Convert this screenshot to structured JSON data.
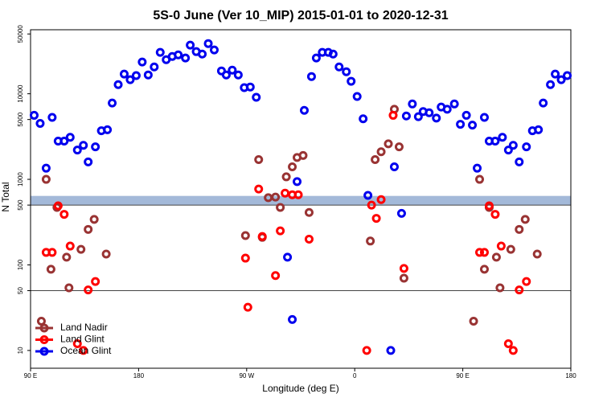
{
  "chart_data": {
    "type": "scatter",
    "title": "5S-0 June (Ver 10_MIP)   2015-01-01 to 2020-12-31",
    "x_label": "Longitude (deg E)",
    "y_label": "N Total",
    "xlim": [
      90,
      540
    ],
    "xticks": [
      {
        "value": 90,
        "label": "90 E"
      },
      180,
      {
        "value": 270,
        "label": "90 W"
      },
      {
        "value": 360,
        "label": "0"
      },
      {
        "value": 450,
        "label": "90 E"
      },
      {
        "value": 540,
        "label": "180"
      }
    ],
    "ylim": [
      6.2,
      56000
    ],
    "yscale": "log",
    "yticks": [
      10,
      50,
      100,
      500,
      1000,
      5000,
      10000,
      50000
    ],
    "hlines": [
      50,
      500
    ],
    "band": [
      500,
      640
    ],
    "legend": "lower left",
    "series": [
      {
        "name": "Land Nadir",
        "color": "#993333",
        "x": [
          99,
          103,
          107,
          112,
          120,
          122,
          132,
          138,
          143,
          153,
          269,
          280,
          283,
          288,
          294,
          298,
          303,
          308,
          312,
          317,
          322,
          373,
          377,
          382,
          388,
          393,
          397,
          401,
          459,
          464,
          468,
          472,
          478,
          481,
          490,
          497,
          502,
          512
        ],
        "values": [
          22,
          1000,
          89,
          470,
          123,
          54,
          152,
          260,
          340,
          134,
          220,
          1700,
          210,
          610,
          620,
          470,
          1070,
          1400,
          1800,
          1900,
          410,
          190,
          1700,
          2100,
          2600,
          6600,
          2400,
          70,
          22,
          1000,
          89,
          470,
          123,
          54,
          152,
          260,
          340,
          134
        ]
      },
      {
        "name": "Land Glint",
        "color": "#ff0000",
        "x": [
          103,
          108,
          113,
          118,
          123,
          129,
          134,
          138,
          144,
          269,
          271,
          280,
          283,
          294,
          298,
          302,
          308,
          313,
          322,
          370,
          374,
          378,
          382,
          392,
          401,
          464,
          468,
          472,
          477,
          482,
          488,
          492,
          497,
          503
        ],
        "values": [
          140,
          140,
          490,
          390,
          166,
          12,
          10,
          51,
          64,
          120,
          32,
          770,
          215,
          75,
          250,
          690,
          660,
          660,
          200,
          10,
          500,
          350,
          580,
          5600,
          91,
          140,
          140,
          490,
          390,
          166,
          12,
          10,
          51,
          64
        ]
      },
      {
        "name": "Ocean Glint",
        "color": "#0000ee",
        "x": [
          93,
          98,
          103,
          108,
          113,
          118,
          123,
          129,
          134,
          138,
          144,
          149,
          154,
          158,
          163,
          168,
          173,
          178,
          183,
          188,
          193,
          198,
          203,
          208,
          213,
          219,
          223,
          228,
          233,
          238,
          243,
          249,
          253,
          258,
          263,
          268,
          273,
          278,
          312,
          318,
          304,
          308,
          324,
          328,
          333,
          338,
          342,
          347,
          353,
          357,
          362,
          367,
          371,
          393,
          390,
          399,
          403,
          408,
          413,
          417,
          422,
          428,
          432,
          437,
          443,
          448,
          453,
          458,
          462,
          468,
          472,
          477,
          483,
          488,
          492,
          497,
          503,
          508,
          513,
          517,
          523,
          527,
          532,
          537
        ],
        "values": [
          5600,
          4500,
          1350,
          5300,
          2800,
          2800,
          3100,
          2200,
          2500,
          1600,
          2400,
          3700,
          3800,
          7800,
          12800,
          17000,
          14600,
          16300,
          23500,
          16600,
          20600,
          30500,
          25000,
          27300,
          28500,
          26200,
          37000,
          31100,
          29100,
          38600,
          32500,
          18500,
          16600,
          18900,
          16600,
          11800,
          12000,
          9100,
          940,
          6400,
          123,
          23,
          15900,
          26200,
          30500,
          30500,
          29100,
          20600,
          18100,
          14000,
          9300,
          5100,
          650,
          1400,
          10,
          400,
          5500,
          7600,
          5400,
          6200,
          6000,
          5200,
          7000,
          6600,
          7600,
          4400,
          5600,
          4300,
          1350,
          5300,
          2800,
          2800,
          3100,
          2200,
          2500,
          1600,
          2400,
          3700,
          3800,
          7800,
          12800,
          17000,
          14600,
          16300
        ]
      }
    ]
  }
}
